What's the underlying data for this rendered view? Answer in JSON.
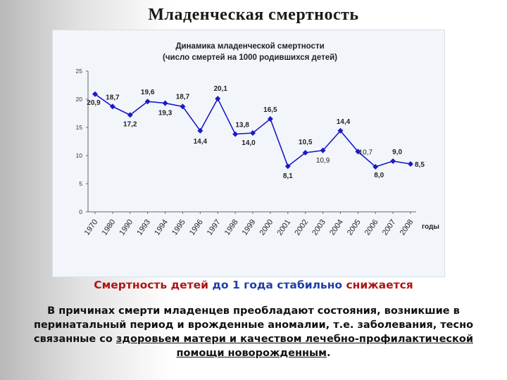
{
  "slide": {
    "title": "Младенческая смертность"
  },
  "subheading": {
    "parts": [
      {
        "text": "Смертность детей ",
        "color": "#b01515"
      },
      {
        "text": "до 1 года",
        "color": "#1e3fa8"
      },
      {
        "text": " стабильно ",
        "color": "#1e3fa8"
      },
      {
        "text": "снижается",
        "color": "#b01515"
      }
    ]
  },
  "body": {
    "text_before": "В причинах смерти младенцев преобладают состояния, возникшие в перинатальный период и врожденные аномалии, т.е. заболевания, тесно связанные со ",
    "underlined": "здоровьем матери и качеством лечебно-профилактической помощи новорожденным",
    "text_after": "."
  },
  "chart_data": {
    "type": "line",
    "title_lines": [
      "Динамика младенческой смертности",
      "(число смертей на 1000 родившихся детей)"
    ],
    "xlabel": "годы",
    "ylabel": "",
    "categories": [
      "1970",
      "1980",
      "1990",
      "1993",
      "1994",
      "1995",
      "1996",
      "1997",
      "1998",
      "1999",
      "2000",
      "2001",
      "2002",
      "2003",
      "2004",
      "2005",
      "2006",
      "2007",
      "2008"
    ],
    "values": [
      20.9,
      18.7,
      17.2,
      19.6,
      19.3,
      18.7,
      14.4,
      20.1,
      13.8,
      14.0,
      16.5,
      8.1,
      10.5,
      10.9,
      14.4,
      10.7,
      8.0,
      9.0,
      8.5
    ],
    "data_labels": [
      "20,9",
      "18,7",
      "17,2",
      "19,6",
      "19,3",
      "18,7",
      "14,4",
      "20,1",
      "13,8",
      "14,0",
      "16,5",
      "8,1",
      "10,5",
      "10,9",
      "14,4",
      "10,7",
      "8,0",
      "9,0",
      "8,5"
    ],
    "ylim": [
      0,
      25
    ],
    "yticks": [
      "0",
      "5",
      "10",
      "15",
      "20",
      "25"
    ],
    "grid": false,
    "legend": "none",
    "line_color": "#1a1ac8",
    "marker": "diamond"
  }
}
